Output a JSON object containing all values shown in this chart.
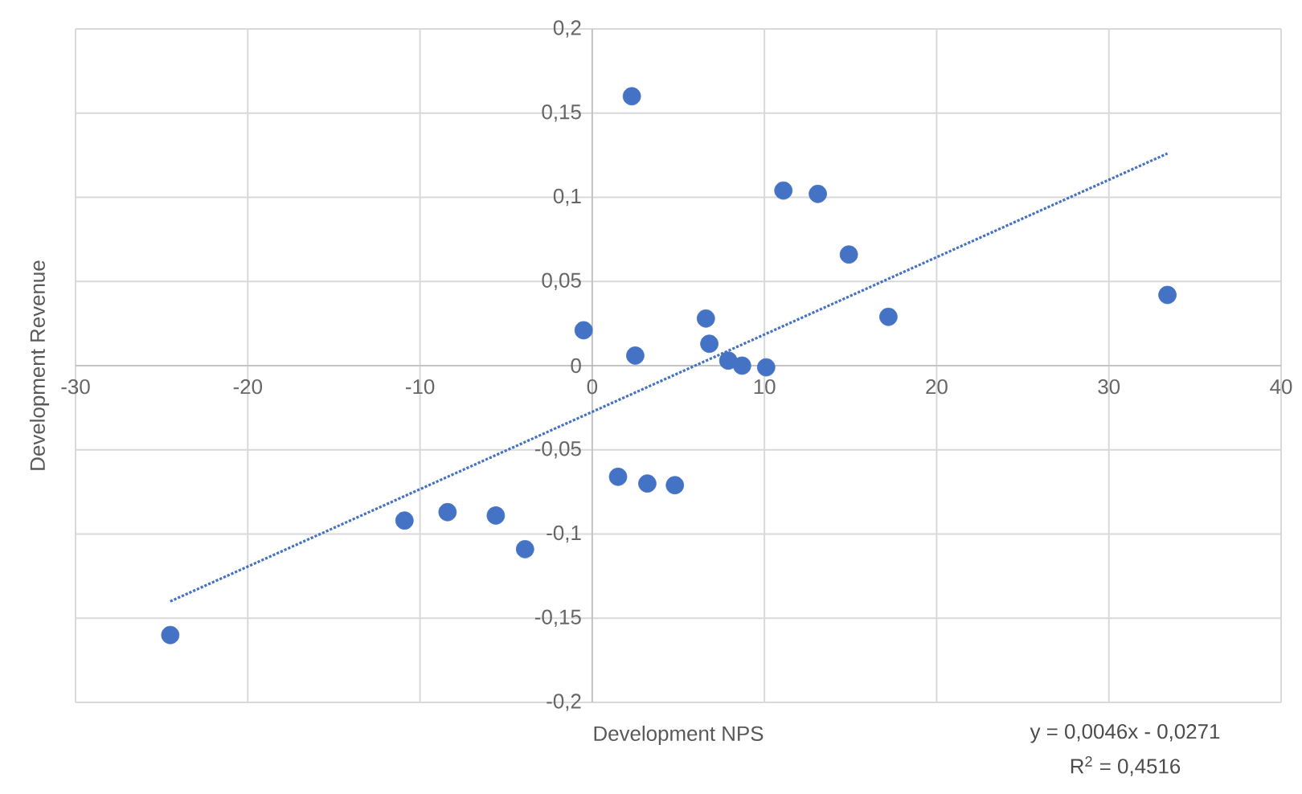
{
  "chart_data": {
    "type": "scatter",
    "xlabel": "Development NPS",
    "ylabel": "Development Revenue",
    "annotations": [
      "y = 0,0046x - 0,0271",
      "R$^{2}$ = 0,4516"
    ],
    "xlim": [
      -30,
      40
    ],
    "xticks": [
      -30,
      -20,
      -10,
      0,
      10,
      20,
      30,
      40
    ],
    "ylim": [
      -0.2,
      0.2
    ],
    "yticks": [
      {
        "value": -0.2,
        "label": "-0,2"
      },
      {
        "value": -0.15,
        "label": "-0,15"
      },
      {
        "value": -0.1,
        "label": "-0,1"
      },
      {
        "value": -0.05,
        "label": "-0,05"
      },
      {
        "value": 0,
        "label": "0"
      },
      {
        "value": 0.05,
        "label": "0,05"
      },
      {
        "value": 0.1,
        "label": "0,1"
      },
      {
        "value": 0.15,
        "label": "0,15"
      },
      {
        "value": 0.2,
        "label": "0,2"
      }
    ],
    "grid": true,
    "marker": "circle",
    "series": [
      {
        "type": "scatter",
        "color": "#4472c4",
        "x": [
          -24.5,
          -10.9,
          -8.4,
          -5.6,
          -3.9,
          -0.5,
          2.3,
          2.5,
          1.5,
          3.2,
          4.8,
          6.6,
          6.8,
          7.9,
          8.7,
          10.1,
          11.1,
          13.1,
          14.9,
          17.2,
          33.4
        ],
        "values": [
          -0.16,
          -0.092,
          -0.087,
          -0.089,
          -0.109,
          0.021,
          0.16,
          0.006,
          -0.066,
          -0.07,
          -0.071,
          0.028,
          0.013,
          0.003,
          0.0,
          -0.001,
          0.104,
          0.102,
          0.066,
          0.029,
          0.042
        ]
      },
      {
        "type": "line",
        "color": "#4472c4",
        "line_style": "dotted",
        "marker": "none",
        "x": [
          -24.5,
          33.4
        ],
        "values": [
          -0.14,
          0.126
        ]
      }
    ]
  }
}
